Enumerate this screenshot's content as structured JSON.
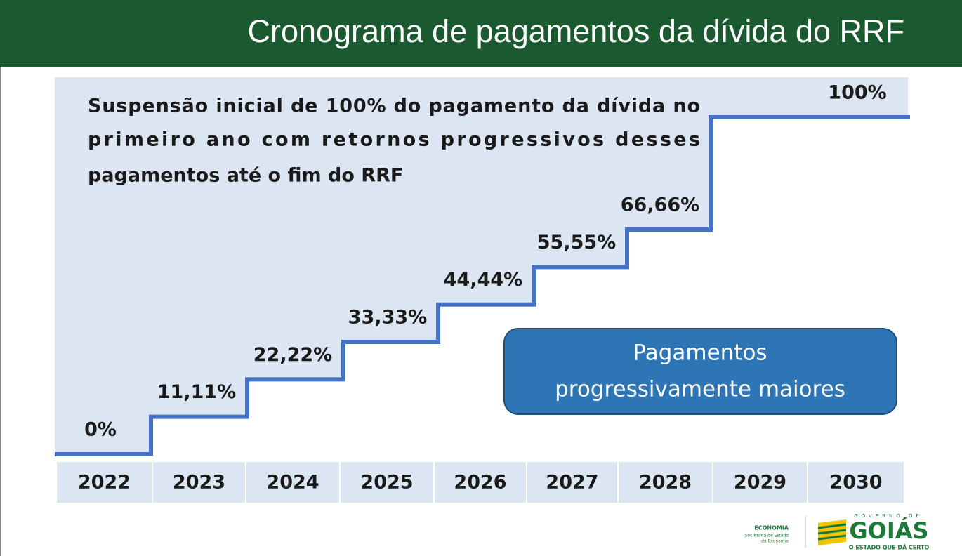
{
  "chart_data": {
    "type": "step",
    "title": "Cronograma de pagamentos da dívida do RRF",
    "annotation": [
      "Suspensão inicial de 100% do pagamento da dívida no",
      "primeiro ano com retornos progressivos desses",
      "pagamentos até o fim do RRF"
    ],
    "callout": [
      "Pagamentos",
      "progressivamente maiores"
    ],
    "categories": [
      "2022",
      "2023",
      "2024",
      "2025",
      "2026",
      "2027",
      "2028",
      "2029",
      "2030"
    ],
    "values": [
      0,
      11.11,
      22.22,
      33.33,
      44.44,
      55.55,
      66.66,
      100,
      100
    ],
    "value_labels": [
      "0%",
      "11,11%",
      "22,22%",
      "33,33%",
      "44,44%",
      "55,55%",
      "66,66%",
      null,
      "100%"
    ],
    "ylim": [
      0,
      100
    ],
    "color": "#4472c4"
  },
  "footer": {
    "economia": "ECONOMIA",
    "secretaria": [
      "Secretaria de Estado",
      "da Economia"
    ],
    "governo": "GOVERNO DE",
    "goias": "GOIÁS",
    "slogan": "O ESTADO QUE DÁ CERTO"
  }
}
